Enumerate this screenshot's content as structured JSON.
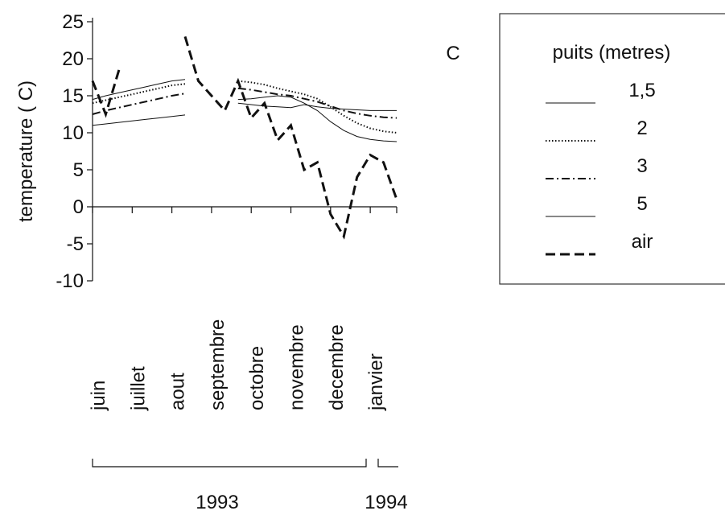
{
  "chart_data": {
    "type": "line",
    "panel_label": "C",
    "ylabel": "temperature ( C)",
    "legend_title": "puits (metres)",
    "categories": [
      "juin",
      null,
      null,
      "juillet",
      null,
      null,
      "aout",
      null,
      null,
      "septembre",
      null,
      null,
      "octobre",
      null,
      null,
      "novembre",
      null,
      null,
      "decembre",
      null,
      null,
      "janvier",
      null,
      null
    ],
    "years": [
      "1993",
      "1994"
    ],
    "series": [
      {
        "name": "1,5",
        "color": "#111111",
        "style": "thin",
        "values": [
          14.5,
          15,
          15.4,
          15.8,
          16.2,
          16.6,
          17,
          17.2,
          null,
          null,
          null,
          14,
          13.8,
          13.6,
          13.5,
          13.4,
          13.8,
          13.5,
          13.3,
          13.2,
          13.1,
          13,
          13,
          13
        ]
      },
      {
        "name": "2",
        "color": "#111111",
        "style": "dotted",
        "values": [
          14,
          14.4,
          14.8,
          15.2,
          15.6,
          16,
          16.4,
          16.6,
          null,
          null,
          null,
          17,
          16.8,
          16.5,
          16,
          15.6,
          15.2,
          14.6,
          13.5,
          12.3,
          11.3,
          10.6,
          10.2,
          10
        ]
      },
      {
        "name": "3",
        "color": "#111111",
        "style": "dashdot",
        "values": [
          12.5,
          13,
          13.4,
          13.8,
          14.2,
          14.6,
          15,
          15.3,
          null,
          null,
          null,
          16,
          15.8,
          15.5,
          15.2,
          15,
          14.6,
          14.2,
          13.6,
          13,
          12.6,
          12.3,
          12.1,
          12
        ]
      },
      {
        "name": "5",
        "color": "#111111",
        "style": "thin",
        "values": [
          11,
          11.2,
          11.4,
          11.6,
          11.8,
          12,
          12.2,
          12.4,
          null,
          null,
          null,
          14.5,
          14.6,
          14.8,
          15,
          14.8,
          14,
          13,
          11.5,
          10.3,
          9.5,
          9.1,
          8.9,
          8.8
        ]
      },
      {
        "name": "air",
        "color": "#111111",
        "style": "dashed",
        "values": [
          17,
          12.5,
          18.5,
          null,
          null,
          null,
          null,
          23,
          17,
          15,
          13,
          17,
          12,
          14,
          9,
          11,
          5,
          6,
          -1,
          -4,
          4,
          7,
          6,
          1
        ]
      }
    ],
    "ylim": [
      -10,
      25
    ],
    "yticks": [
      -10,
      -5,
      0,
      5,
      10,
      15,
      20,
      25
    ]
  }
}
